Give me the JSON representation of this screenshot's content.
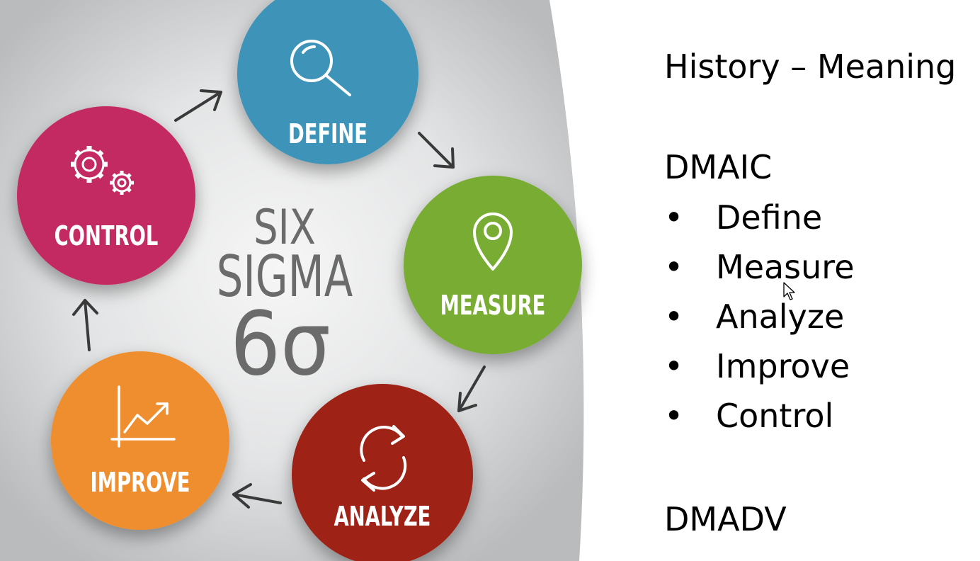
{
  "diagram": {
    "center": {
      "line1": "SIX",
      "line2": "SIGMA",
      "line3": "6σ"
    },
    "stages": [
      {
        "label": "DEFINE",
        "color": "#3d94b8",
        "icon": "magnifier-icon"
      },
      {
        "label": "MEASURE",
        "color": "#79ac32",
        "icon": "location-pin-icon"
      },
      {
        "label": "ANALYZE",
        "color": "#9e2417",
        "icon": "refresh-cycle-icon"
      },
      {
        "label": "IMPROVE",
        "color": "#ee8e2d",
        "icon": "trend-chart-icon"
      },
      {
        "label": "CONTROL",
        "color": "#c42a62",
        "icon": "gears-icon"
      }
    ]
  },
  "slide": {
    "title": "History – Meaning",
    "method1": {
      "heading": "DMAIC",
      "bullet": "•",
      "items": [
        "Define",
        "Measure",
        "Analyze",
        "Improve",
        "Control"
      ]
    },
    "method2": {
      "heading": "DMADV"
    }
  },
  "colors": {
    "background_gray": "#c9cbcd",
    "center_text": "#6b6b6b",
    "arrow": "#3a3a3a"
  }
}
